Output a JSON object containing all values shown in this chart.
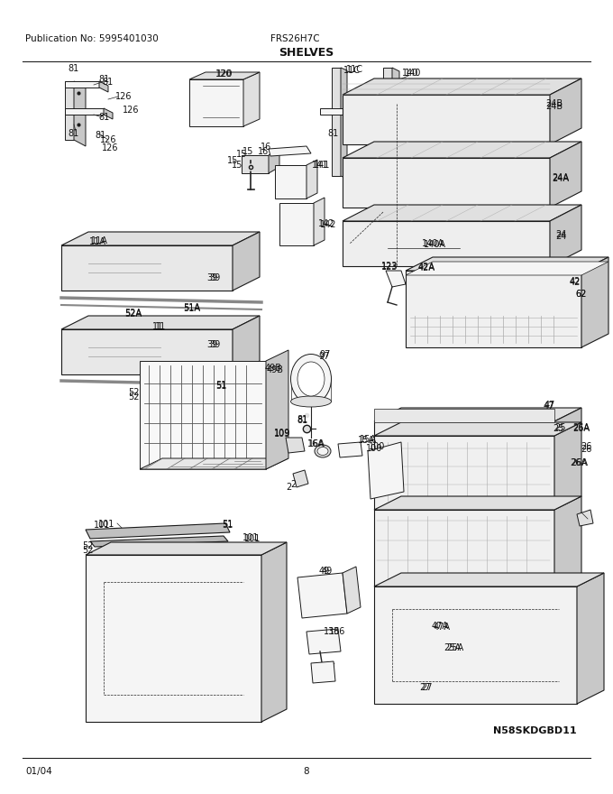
{
  "pub_no": "Publication No: 5995401030",
  "model": "FRS26H7C",
  "section": "SHELVES",
  "date": "01/04",
  "page": "8",
  "diagram_id": "N58SKDGBD11",
  "bg_color": "#ffffff",
  "line_color": "#000000",
  "text_color": "#000000",
  "fig_width": 6.8,
  "fig_height": 8.8,
  "dpi": 100
}
